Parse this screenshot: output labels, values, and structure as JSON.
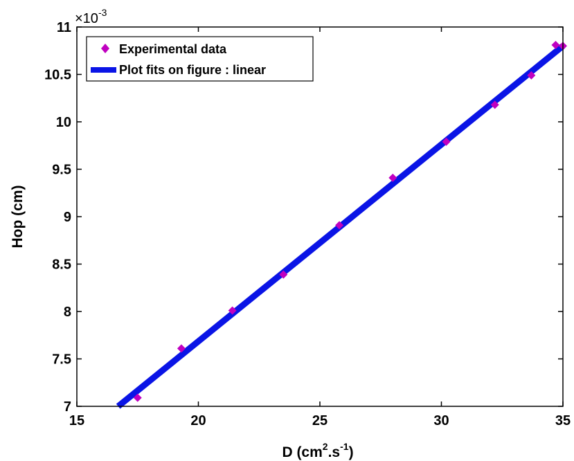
{
  "chart_data": {
    "type": "scatter",
    "title": "",
    "xlabel": "D (cm",
    "xlabel_sup1": "2",
    "xlabel_mid": ".s",
    "xlabel_sup2": "-1",
    "xlabel_end": ")",
    "ylabel": "Hop (cm)",
    "y_multiplier": "×10",
    "y_multiplier_exp": "-3",
    "xlim": [
      15,
      35
    ],
    "ylim": [
      7,
      11
    ],
    "x_ticks": [
      "15",
      "20",
      "25",
      "30",
      "35"
    ],
    "y_ticks": [
      "7",
      "7.5",
      "8",
      "8.5",
      "9",
      "9.5",
      "10",
      "10.5",
      "11"
    ],
    "grid": false,
    "legend_position": "top-left",
    "series": [
      {
        "name": "Experimental data",
        "kind": "scatter",
        "marker": "diamond",
        "color": "#c000c0",
        "x": [
          17.5,
          19.3,
          21.4,
          23.5,
          25.8,
          28.0,
          30.2,
          32.2,
          33.7,
          34.7,
          35.0
        ],
        "y": [
          7.09,
          7.61,
          8.01,
          8.39,
          8.91,
          9.41,
          9.79,
          10.18,
          10.49,
          10.81,
          10.8
        ]
      },
      {
        "name": "Plot fits on figure : linear",
        "kind": "line",
        "color": "#0a14e6",
        "x": [
          16.7,
          35.0
        ],
        "y": [
          7.0,
          10.8
        ]
      }
    ]
  }
}
